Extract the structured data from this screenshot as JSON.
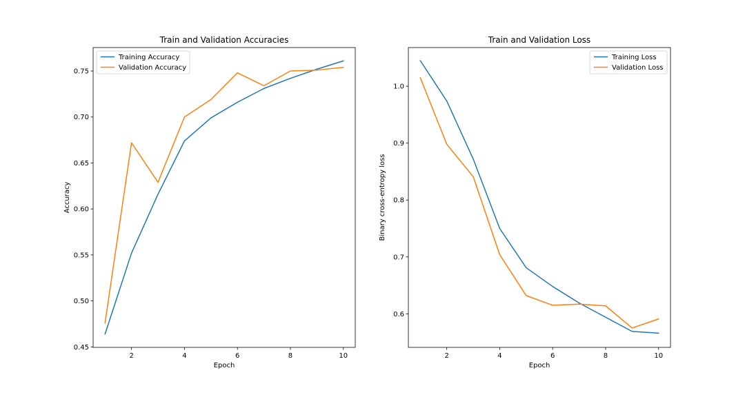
{
  "chart_data": [
    {
      "type": "line",
      "title": "Train and Validation Accuracies",
      "xlabel": "Epoch",
      "ylabel": "Accuracy",
      "xlim": [
        0.55,
        10.45
      ],
      "ylim": [
        0.4495,
        0.7755
      ],
      "xticks": [
        2,
        4,
        6,
        8,
        10
      ],
      "xtick_labels": [
        "2",
        "4",
        "6",
        "8",
        "10"
      ],
      "yticks": [
        0.45,
        0.5,
        0.55,
        0.6,
        0.65,
        0.7,
        0.75
      ],
      "ytick_labels": [
        "0.45",
        "0.50",
        "0.55",
        "0.60",
        "0.65",
        "0.70",
        "0.75"
      ],
      "grid": false,
      "legend_position": "upper-left",
      "x": [
        1,
        2,
        3,
        4,
        5,
        6,
        7,
        8,
        9,
        10
      ],
      "series": [
        {
          "name": "Training Accuracy",
          "color": "#1f77b4",
          "values": [
            0.464,
            0.552,
            0.616,
            0.674,
            0.699,
            0.716,
            0.731,
            0.742,
            0.752,
            0.761
          ]
        },
        {
          "name": "Validation Accuracy",
          "color": "#ff7f0e",
          "values": [
            0.476,
            0.672,
            0.629,
            0.7,
            0.719,
            0.748,
            0.734,
            0.75,
            0.751,
            0.754
          ]
        }
      ]
    },
    {
      "type": "line",
      "title": "Train and Validation Loss",
      "xlabel": "Epoch",
      "ylabel": "Binary cross-entropy loss",
      "xlim": [
        0.55,
        10.45
      ],
      "ylim": [
        0.541,
        1.068
      ],
      "xticks": [
        2,
        4,
        6,
        8,
        10
      ],
      "xtick_labels": [
        "2",
        "4",
        "6",
        "8",
        "10"
      ],
      "yticks": [
        0.6,
        0.7,
        0.8,
        0.9,
        1.0
      ],
      "ytick_labels": [
        "0.6",
        "0.7",
        "0.8",
        "0.9",
        "1.0"
      ],
      "grid": false,
      "legend_position": "upper-right",
      "x": [
        1,
        2,
        3,
        4,
        5,
        6,
        7,
        8,
        9,
        10
      ],
      "series": [
        {
          "name": "Training Loss",
          "color": "#1f77b4",
          "values": [
            1.045,
            0.974,
            0.872,
            0.75,
            0.681,
            0.648,
            0.619,
            0.594,
            0.569,
            0.566
          ]
        },
        {
          "name": "Validation Loss",
          "color": "#ff7f0e",
          "values": [
            1.015,
            0.898,
            0.841,
            0.704,
            0.632,
            0.615,
            0.617,
            0.614,
            0.575,
            0.591
          ]
        }
      ]
    }
  ]
}
